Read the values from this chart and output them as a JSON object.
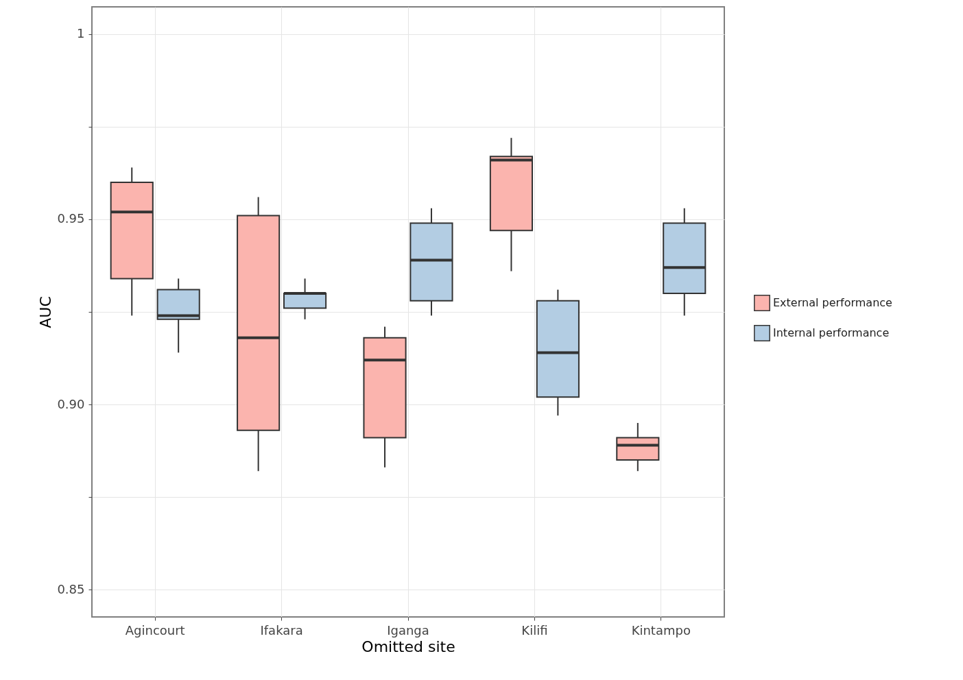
{
  "chart_data": {
    "type": "box",
    "xlabel": "Omitted site",
    "ylabel": "AUC",
    "categories": [
      "Agincourt",
      "Ifakara",
      "Iganga",
      "Kilifi",
      "Kintampo"
    ],
    "ylim": [
      0.8426,
      1.0074
    ],
    "yticks": [
      {
        "value": 0.85,
        "label": "0.85"
      },
      {
        "value": 0.875,
        "label": null
      },
      {
        "value": 0.9,
        "label": "0.90"
      },
      {
        "value": 0.925,
        "label": null
      },
      {
        "value": 0.95,
        "label": "0.95"
      },
      {
        "value": 0.975,
        "label": null
      },
      {
        "value": 1,
        "label": "1"
      }
    ],
    "grid": true,
    "legend": "right",
    "series": [
      {
        "name": "External performance",
        "color": "#fbb4ae",
        "boxes": [
          {
            "low": 0.924,
            "q1": 0.934,
            "median": 0.952,
            "q3": 0.96,
            "high": 0.964
          },
          {
            "low": 0.882,
            "q1": 0.893,
            "median": 0.918,
            "q3": 0.951,
            "high": 0.956
          },
          {
            "low": 0.883,
            "q1": 0.891,
            "median": 0.912,
            "q3": 0.918,
            "high": 0.921
          },
          {
            "low": 0.936,
            "q1": 0.947,
            "median": 0.966,
            "q3": 0.967,
            "high": 0.972
          },
          {
            "low": 0.882,
            "q1": 0.885,
            "median": 0.889,
            "q3": 0.891,
            "high": 0.895
          }
        ]
      },
      {
        "name": "Internal performance",
        "color": "#b3cde3",
        "boxes": [
          {
            "low": 0.914,
            "q1": 0.923,
            "median": 0.924,
            "q3": 0.931,
            "high": 0.934
          },
          {
            "low": 0.923,
            "q1": 0.926,
            "median": 0.93,
            "q3": 0.93,
            "high": 0.934
          },
          {
            "low": 0.924,
            "q1": 0.928,
            "median": 0.939,
            "q3": 0.949,
            "high": 0.953
          },
          {
            "low": 0.897,
            "q1": 0.902,
            "median": 0.914,
            "q3": 0.928,
            "high": 0.931
          },
          {
            "low": 0.924,
            "q1": 0.93,
            "median": 0.937,
            "q3": 0.949,
            "high": 0.953
          }
        ]
      }
    ]
  }
}
